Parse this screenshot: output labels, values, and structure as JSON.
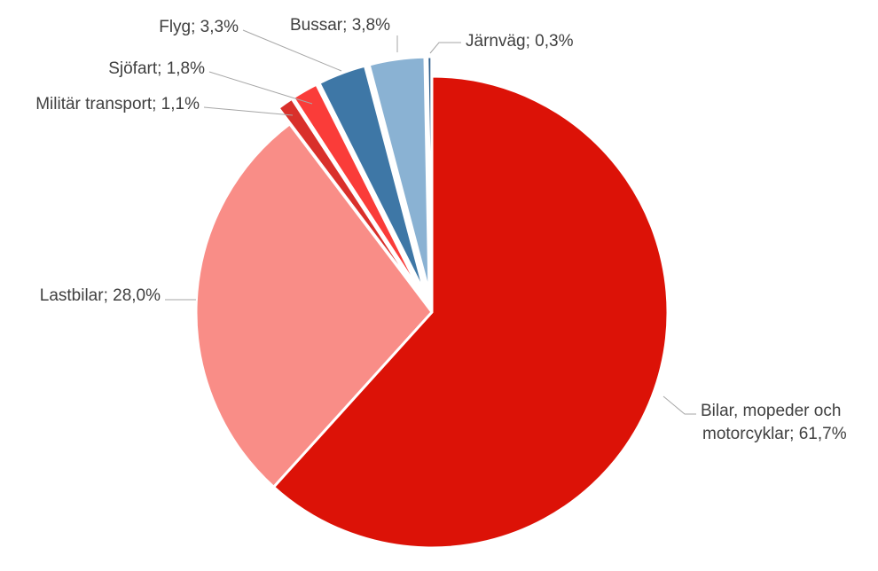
{
  "chart_data": {
    "type": "pie",
    "legend": "none",
    "slices": [
      {
        "name": "Bilar, mopeder och motorcyklar",
        "label_lines": [
          "Bilar, mopeder och",
          "motorcyklar; 61,7%"
        ],
        "value": 61.7,
        "color": "#dc1207",
        "exploded": false
      },
      {
        "name": "Lastbilar",
        "label_lines": [
          "Lastbilar; 28,0%"
        ],
        "value": 28.0,
        "color": "#f98d87",
        "exploded": false
      },
      {
        "name": "Militär transport",
        "label_lines": [
          "Militär transport; 1,1%"
        ],
        "value": 1.1,
        "color": "#d9302b",
        "exploded": true
      },
      {
        "name": "Sjöfart",
        "label_lines": [
          "Sjöfart; 1,8%"
        ],
        "value": 1.8,
        "color": "#fa3c39",
        "exploded": true
      },
      {
        "name": "Flyg",
        "label_lines": [
          "Flyg; 3,3%"
        ],
        "value": 3.3,
        "color": "#3e77a6",
        "exploded": true
      },
      {
        "name": "Bussar",
        "label_lines": [
          "Bussar; 3,8%"
        ],
        "value": 3.8,
        "color": "#8ab2d3",
        "exploded": true
      },
      {
        "name": "Järnväg",
        "label_lines": [
          "Järnväg; 0,3%"
        ],
        "value": 0.3,
        "color": "#2f5f8c",
        "exploded": true
      }
    ]
  }
}
